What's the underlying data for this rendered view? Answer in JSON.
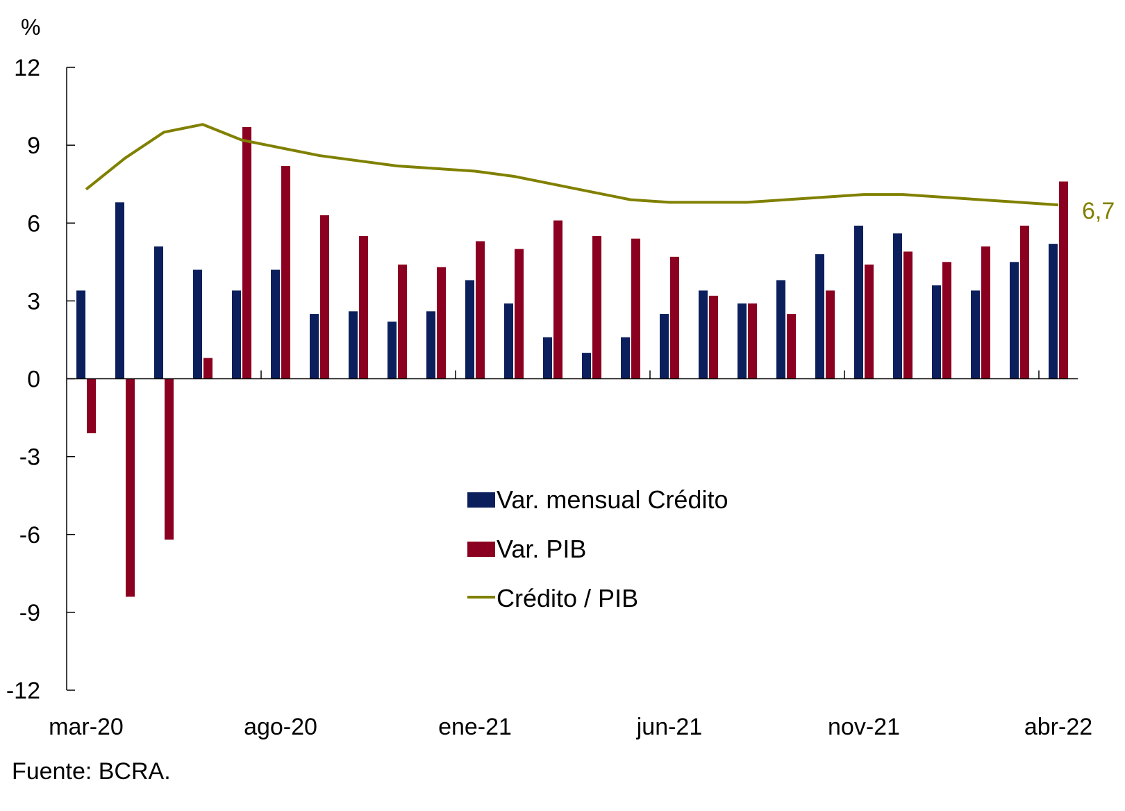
{
  "chart_data": {
    "type": "bar",
    "ylabel": "%",
    "ylim": [
      -12,
      12
    ],
    "yticks": [
      12,
      9,
      6,
      3,
      0,
      -3,
      -6,
      -9,
      -12
    ],
    "ytick_labels": [
      "12",
      "9",
      "6",
      "3",
      "0",
      "-3",
      "-6",
      "-9",
      "-12"
    ],
    "grid": false,
    "categories": [
      "mar-20",
      "abr-20",
      "may-20",
      "jun-20",
      "jul-20",
      "ago-20",
      "sep-20",
      "oct-20",
      "nov-20",
      "dic-20",
      "ene-21",
      "feb-21",
      "mar-21",
      "abr-21",
      "may-21",
      "jun-21",
      "jul-21",
      "ago-21",
      "sep-21",
      "oct-21",
      "nov-21",
      "dic-21",
      "ene-22",
      "feb-22",
      "mar-22",
      "abr-22"
    ],
    "xtick_labels": [
      "mar-20",
      "ago-20",
      "ene-21",
      "jun-21",
      "nov-21",
      "abr-22"
    ],
    "series": [
      {
        "name": "Var. mensual Crédito",
        "type": "bar",
        "color": "#0b1f5c",
        "values": [
          3.4,
          6.8,
          5.1,
          4.2,
          3.4,
          4.2,
          2.5,
          2.6,
          2.2,
          2.6,
          3.8,
          2.9,
          1.6,
          1.0,
          1.6,
          2.5,
          3.4,
          2.9,
          3.8,
          4.8,
          5.9,
          5.6,
          3.6,
          3.4,
          4.5,
          5.2
        ]
      },
      {
        "name": "Var. PIB",
        "type": "bar",
        "color": "#8b0020",
        "values": [
          -2.1,
          -8.4,
          -6.2,
          0.8,
          9.7,
          8.2,
          6.3,
          5.5,
          4.4,
          4.3,
          5.3,
          5.0,
          6.1,
          5.5,
          5.4,
          4.7,
          3.2,
          2.9,
          2.5,
          3.4,
          4.4,
          4.9,
          4.5,
          5.1,
          5.9,
          7.6
        ]
      },
      {
        "name": "Crédito / PIB",
        "type": "line",
        "color": "#808000",
        "values": [
          7.3,
          8.5,
          9.5,
          9.8,
          9.2,
          8.9,
          8.6,
          8.4,
          8.2,
          8.1,
          8.0,
          7.8,
          7.5,
          7.2,
          6.9,
          6.8,
          6.8,
          6.8,
          6.9,
          7.0,
          7.1,
          7.1,
          7.0,
          6.9,
          6.8,
          6.7
        ]
      }
    ],
    "annotation": "6,7",
    "legend_placement": "center",
    "source": "Fuente: BCRA."
  }
}
